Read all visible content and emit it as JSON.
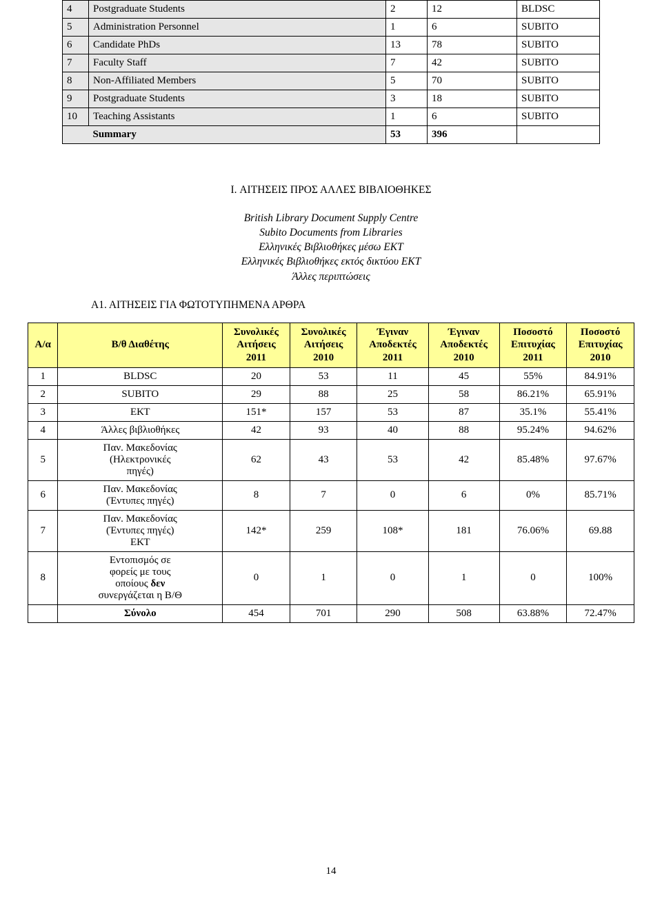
{
  "table1": {
    "header_bg": "#e6e6e6",
    "rows": [
      {
        "n": "4",
        "label": "Postgraduate Students",
        "c1": "2",
        "c2": "12",
        "src": "BLDSC"
      },
      {
        "n": "5",
        "label": "Administration Personnel",
        "c1": "1",
        "c2": "6",
        "src": "SUBITO"
      },
      {
        "n": "6",
        "label": "Candidate PhDs",
        "c1": "13",
        "c2": "78",
        "src": "SUBITO"
      },
      {
        "n": "7",
        "label": "Faculty Staff",
        "c1": "7",
        "c2": "42",
        "src": "SUBITO"
      },
      {
        "n": "8",
        "label": "Non-Affiliated Members",
        "c1": "5",
        "c2": "70",
        "src": "SUBITO"
      },
      {
        "n": "9",
        "label": "Postgraduate Students",
        "c1": "3",
        "c2": "18",
        "src": "SUBITO"
      },
      {
        "n": "10",
        "label": "Teaching Assistants",
        "c1": "1",
        "c2": "6",
        "src": "SUBITO"
      }
    ],
    "summary_label": "Summary",
    "summary_c1": "53",
    "summary_c2": "396"
  },
  "section_I_title": "I. ΑΙΤΗΣΕΙΣ ΠΡΟΣ ΑΛΛΕΣ ΒΙΒΛΙΟΘΗΚΕΣ",
  "italic_lines": [
    "British Library Document Supply Centre",
    "Subito Documents from Libraries",
    "Ελληνικές Βιβλιοθήκες μέσω ΕΚΤ",
    "Ελληνικές Βιβλιοθήκες εκτός δικτύου ΕΚΤ",
    "Άλλες περιπτώσεις"
  ],
  "a1_title": "Α1. ΑΙΤΗΣΕΙΣ ΓΙΑ ΦΩΤΟΤΥΠΗΜΕΝΑ ΑΡΘΡΑ",
  "table2": {
    "header_bg": "#ffff99",
    "cols": [
      "Α/α",
      "Β/θ Διαθέτης",
      "Συνολικές\nΑιτήσεις\n2011",
      "Συνολικές\nΑιτήσεις\n2010",
      "Έγιναν\nΑποδεκτές\n2011",
      "Έγιναν\nΑποδεκτές\n2010",
      "Ποσοστό\nΕπιτυχίας\n2011",
      "Ποσοστό\nΕπιτυχίας\n2010"
    ],
    "col_widths": [
      "40px",
      "220px",
      "90px",
      "90px",
      "95px",
      "95px",
      "90px",
      "90px"
    ],
    "rows": [
      {
        "n": "1",
        "label": "BLDSC",
        "a11": "20",
        "a10": "53",
        "ac11": "11",
        "ac10": "45",
        "p11": "55%",
        "p10": "84.91%"
      },
      {
        "n": "2",
        "label": "SUBITO",
        "a11": "29",
        "a10": "88",
        "ac11": "25",
        "ac10": "58",
        "p11": "86.21%",
        "p10": "65.91%"
      },
      {
        "n": "3",
        "label": "ΕΚΤ",
        "a11": "151*",
        "a10": "157",
        "ac11": "53",
        "ac10": "87",
        "p11": "35.1%",
        "p10": "55.41%"
      },
      {
        "n": "4",
        "label": "Άλλες βιβλιοθήκες",
        "a11": "42",
        "a10": "93",
        "ac11": "40",
        "ac10": "88",
        "p11": "95.24%",
        "p10": "94.62%"
      },
      {
        "n": "5",
        "label": "Παν. Μακεδονίας\n(Ηλεκτρονικές\nπηγές)",
        "a11": "62",
        "a10": "43",
        "ac11": "53",
        "ac10": "42",
        "p11": "85.48%",
        "p10": "97.67%"
      },
      {
        "n": "6",
        "label": "Παν. Μακεδονίας\n(Έντυπες πηγές)",
        "a11": "8",
        "a10": "7",
        "ac11": "0",
        "ac10": "6",
        "p11": "0%",
        "p10": "85.71%"
      },
      {
        "n": "7",
        "label": "Παν. Μακεδονίας\n(Έντυπες πηγές)\nΕΚΤ",
        "a11": "142*",
        "a10": "259",
        "ac11": "108*",
        "ac10": "181",
        "p11": "76.06%",
        "p10": "69.88"
      },
      {
        "n": "8",
        "label": "Εντοπισμός σε\nφορείς με τους\nοποίους δεν\nσυνεργάζεται η Β/Θ",
        "a11": "0",
        "a10": "1",
        "ac11": "0",
        "ac10": "1",
        "p11": "0",
        "p10": "100%"
      }
    ],
    "sum_label": "Σύνολο",
    "sum": {
      "a11": "454",
      "a10": "701",
      "ac11": "290",
      "ac10": "508",
      "p11": "63.88%",
      "p10": "72.47%"
    }
  },
  "page_number": "14"
}
